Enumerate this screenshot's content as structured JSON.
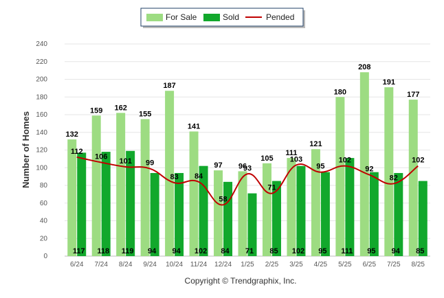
{
  "chart_data": {
    "type": "bar",
    "categories": [
      "6/24",
      "7/24",
      "8/24",
      "9/24",
      "10/24",
      "11/24",
      "12/24",
      "1/25",
      "2/25",
      "3/25",
      "4/25",
      "5/25",
      "6/25",
      "7/25",
      "8/25"
    ],
    "series": [
      {
        "name": "For Sale",
        "kind": "bar",
        "color": "#9ddc82",
        "values": [
          132,
          159,
          162,
          155,
          187,
          141,
          97,
          96,
          105,
          111,
          121,
          180,
          208,
          191,
          177
        ]
      },
      {
        "name": "Sold",
        "kind": "bar",
        "color": "#12a82c",
        "values": [
          117,
          118,
          119,
          94,
          94,
          102,
          84,
          71,
          85,
          102,
          95,
          111,
          95,
          94,
          85
        ]
      },
      {
        "name": "Pended",
        "kind": "line",
        "color": "#c00000",
        "values": [
          112,
          106,
          101,
          99,
          83,
          84,
          58,
          93,
          71,
          103,
          95,
          102,
          92,
          82,
          102
        ]
      }
    ],
    "ylabel": "Number of Homes",
    "ylim": [
      0,
      240
    ],
    "yticks": [
      0,
      20,
      40,
      60,
      80,
      100,
      120,
      140,
      160,
      180,
      200,
      220,
      240
    ],
    "grid": true,
    "legend_position": "top-center"
  },
  "footer": {
    "copyright": "Copyright © Trendgraphix, Inc."
  }
}
